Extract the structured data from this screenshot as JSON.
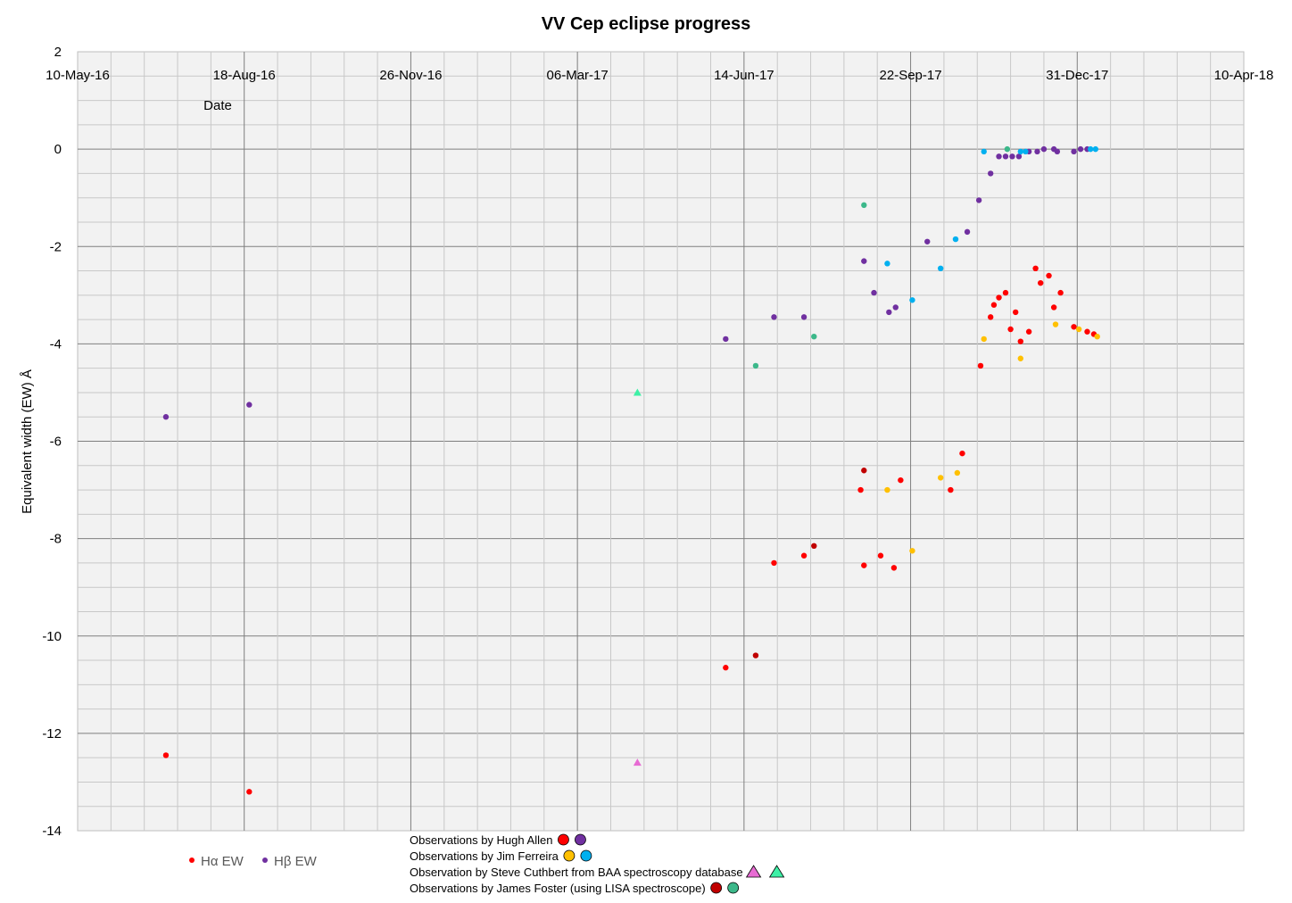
{
  "chart_data": {
    "type": "scatter",
    "title": "VV Cep eclipse progress",
    "xlabel": "Date",
    "ylabel": "Equivalent width (EW) Å",
    "ylim": [
      -14,
      2
    ],
    "yticks": [
      "2",
      "0",
      "-2",
      "-4",
      "-6",
      "-8",
      "-10",
      "-12",
      "-14"
    ],
    "xticks": [
      "10-May-16",
      "18-Aug-16",
      "26-Nov-16",
      "06-Mar-17",
      "14-Jun-17",
      "22-Sep-17",
      "31-Dec-17",
      "10-Apr-18"
    ],
    "xlim_days": [
      0,
      700
    ],
    "grid": true,
    "legend": [
      {
        "label": "Hα EW",
        "color": "#ff0000"
      },
      {
        "label": "Hβ EW",
        "color": "#7030a0"
      }
    ],
    "notes": [
      {
        "text": "Observations by Hugh Allen",
        "markers": [
          "#ff0000",
          "#7030a0"
        ],
        "shape": "circle"
      },
      {
        "text": "Observations by Jim Ferreira",
        "markers": [
          "#ffc000",
          "#00b0f0"
        ],
        "shape": "circle"
      },
      {
        "text": "Observation by Steve Cuthbert from BAA spectroscopy database",
        "markers": [
          "#e76bd3",
          "#3ef0a6"
        ],
        "shape": "triangle"
      },
      {
        "text": "Observations by James Foster (using LISA spectroscope)",
        "markers": [
          "#c00000",
          "#3cb88a"
        ],
        "shape": "circle"
      }
    ],
    "series": [
      {
        "name": "Hα EW (Hugh Allen)",
        "color": "#ff0000",
        "shape": "circle",
        "x": [
          53,
          103,
          389,
          418,
          436,
          470,
          472,
          482,
          490,
          494,
          524,
          531,
          542,
          548,
          550,
          553,
          557,
          560,
          563,
          566,
          571,
          575,
          578,
          583,
          586,
          590,
          598,
          606,
          610
        ],
        "y": [
          -12.45,
          -13.2,
          -10.65,
          -8.5,
          -8.35,
          -7.0,
          -8.55,
          -8.35,
          -8.6,
          -6.8,
          -7.0,
          -6.25,
          -4.45,
          -3.45,
          -3.2,
          -3.05,
          -2.95,
          -3.7,
          -3.35,
          -3.95,
          -3.75,
          -2.45,
          -2.75,
          -2.6,
          -3.25,
          -2.95,
          -3.65,
          -3.75,
          -3.8
        ]
      },
      {
        "name": "Hβ EW (Hugh Allen)",
        "color": "#7030a0",
        "shape": "circle",
        "x": [
          53,
          103,
          389,
          418,
          436,
          472,
          478,
          487,
          491,
          510,
          534,
          541,
          548,
          553,
          557,
          561,
          565,
          571,
          576,
          580,
          586,
          588,
          598,
          602,
          606
        ],
        "y": [
          -5.5,
          -5.25,
          -3.9,
          -3.45,
          -3.45,
          -2.3,
          -2.95,
          -3.35,
          -3.25,
          -1.9,
          -1.7,
          -1.05,
          -0.5,
          -0.15,
          -0.15,
          -0.15,
          -0.15,
          -0.05,
          -0.05,
          0.0,
          0.0,
          -0.05,
          -0.05,
          0.0,
          0.0
        ]
      },
      {
        "name": "Hα EW (Jim Ferreira)",
        "color": "#ffc000",
        "shape": "circle",
        "x": [
          486,
          501,
          518,
          528,
          544,
          566,
          587,
          601,
          612
        ],
        "y": [
          -7.0,
          -8.25,
          -6.75,
          -6.65,
          -3.9,
          -4.3,
          -3.6,
          -3.7,
          -3.85
        ]
      },
      {
        "name": "Hβ EW (Jim Ferreira)",
        "color": "#00b0f0",
        "shape": "circle",
        "x": [
          486,
          501,
          518,
          527,
          544,
          566,
          569,
          608,
          611
        ],
        "y": [
          -2.35,
          -3.1,
          -2.45,
          -1.85,
          -0.05,
          -0.05,
          -0.05,
          0.0,
          0.0
        ]
      },
      {
        "name": "Hα EW (Steve Cuthbert, BAA)",
        "color": "#e76bd3",
        "shape": "triangle",
        "x": [
          336
        ],
        "y": [
          -12.6
        ]
      },
      {
        "name": "Hβ EW (Steve Cuthbert, BAA)",
        "color": "#3ef0a6",
        "shape": "triangle",
        "x": [
          336
        ],
        "y": [
          -5.0
        ]
      },
      {
        "name": "Hα EW (James Foster, LISA)",
        "color": "#c00000",
        "shape": "circle",
        "x": [
          407,
          442,
          472
        ],
        "y": [
          -10.4,
          -8.15,
          -6.6
        ]
      },
      {
        "name": "Hβ EW (James Foster, LISA)",
        "color": "#3cb88a",
        "shape": "circle",
        "x": [
          407,
          442,
          472,
          558
        ],
        "y": [
          -4.45,
          -3.85,
          -1.15,
          0.0
        ]
      }
    ]
  }
}
